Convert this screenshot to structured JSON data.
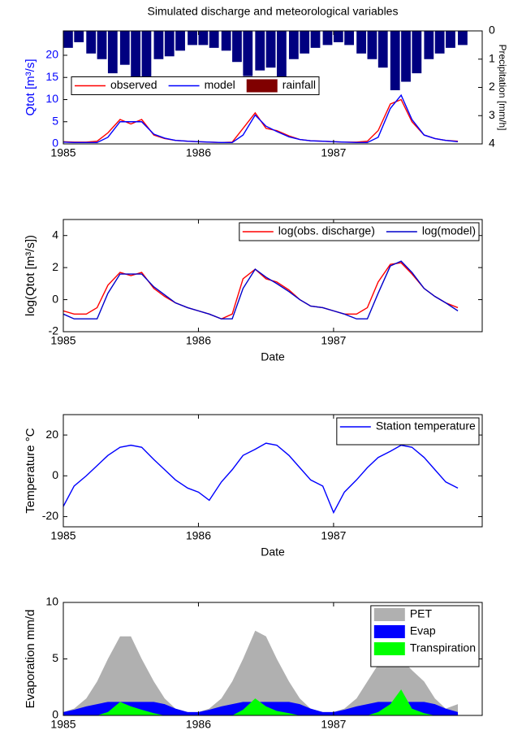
{
  "chart_data": [
    {
      "type": "line",
      "title": "Simulated discharge and meteorological variables",
      "ylabel": "Qtot [m³/s]",
      "ycolor": "#0000ff",
      "y2label": "Precipitation [mm/h]",
      "x": [
        1985,
        1985.08,
        1985.17,
        1985.25,
        1985.33,
        1985.42,
        1985.5,
        1985.58,
        1985.67,
        1985.75,
        1985.83,
        1985.92,
        1986,
        1986.08,
        1986.17,
        1986.25,
        1986.33,
        1986.42,
        1986.5,
        1986.58,
        1986.67,
        1986.75,
        1986.83,
        1986.92,
        1987,
        1987.08,
        1987.17,
        1987.25,
        1987.33,
        1987.42,
        1987.5,
        1987.58,
        1987.67,
        1987.75,
        1987.83,
        1987.92
      ],
      "xlim": [
        1985,
        1988.1
      ],
      "xticks": [
        1985,
        1986,
        1987
      ],
      "ylim": [
        0,
        25.5
      ],
      "yticks": [
        0,
        5,
        10,
        15,
        20
      ],
      "y2lim": [
        4,
        0
      ],
      "y2ticks": [
        0,
        1,
        2,
        3,
        4
      ],
      "legend": "west",
      "legend_layout": "horizontal",
      "series": [
        {
          "name": "observed",
          "color": "#ff0000",
          "values": [
            0.5,
            0.4,
            0.4,
            0.6,
            2.5,
            5.5,
            4.5,
            5.5,
            2.0,
            1.2,
            0.8,
            0.6,
            0.5,
            0.4,
            0.3,
            0.4,
            3.5,
            7.0,
            3.5,
            3.0,
            1.8,
            1.0,
            0.7,
            0.6,
            0.5,
            0.4,
            0.4,
            0.6,
            3.0,
            9.0,
            10.0,
            5.0,
            2.0,
            1.2,
            0.8,
            0.6
          ]
        },
        {
          "name": "model",
          "color": "#0000ff",
          "values": [
            0.4,
            0.3,
            0.3,
            0.3,
            1.5,
            5.0,
            5.0,
            5.0,
            2.2,
            1.3,
            0.8,
            0.6,
            0.5,
            0.4,
            0.3,
            0.3,
            2.0,
            6.5,
            4.0,
            2.8,
            1.6,
            1.0,
            0.7,
            0.6,
            0.5,
            0.4,
            0.3,
            0.3,
            1.5,
            8.0,
            11.0,
            5.5,
            2.0,
            1.2,
            0.8,
            0.5
          ]
        },
        {
          "name": "rainfall",
          "type": "bar",
          "axis": "y2",
          "color": "#000080",
          "legend_color": "#800000",
          "values": [
            0.6,
            0.4,
            0.8,
            1.0,
            1.5,
            1.2,
            2.0,
            1.8,
            1.0,
            0.9,
            0.7,
            0.5,
            0.5,
            0.6,
            0.7,
            1.1,
            1.6,
            1.4,
            1.3,
            1.9,
            1.0,
            0.8,
            0.6,
            0.5,
            0.4,
            0.5,
            0.8,
            1.0,
            1.3,
            2.1,
            1.8,
            1.5,
            1.0,
            0.8,
            0.6,
            0.5
          ]
        }
      ]
    },
    {
      "type": "line",
      "ylabel": "log(Qtot [m³/s])",
      "xlabel": "Date",
      "x": [
        1985,
        1985.08,
        1985.17,
        1985.25,
        1985.33,
        1985.42,
        1985.5,
        1985.58,
        1985.67,
        1985.75,
        1985.83,
        1985.92,
        1986,
        1986.08,
        1986.17,
        1986.25,
        1986.33,
        1986.42,
        1986.5,
        1986.58,
        1986.67,
        1986.75,
        1986.83,
        1986.92,
        1987,
        1987.08,
        1987.17,
        1987.25,
        1987.33,
        1987.42,
        1987.5,
        1987.58,
        1987.67,
        1987.75,
        1987.83,
        1987.92
      ],
      "xlim": [
        1985,
        1988.1
      ],
      "xticks": [
        1985,
        1986,
        1987
      ],
      "ylim": [
        -2,
        5
      ],
      "yticks": [
        -2,
        0,
        2,
        4
      ],
      "legend": "northeast",
      "legend_layout": "horizontal",
      "series": [
        {
          "name": "log(obs. discharge)",
          "color": "#ff0000",
          "values": [
            -0.7,
            -0.9,
            -0.9,
            -0.5,
            0.9,
            1.7,
            1.5,
            1.7,
            0.7,
            0.2,
            -0.2,
            -0.5,
            -0.7,
            -0.9,
            -1.2,
            -0.9,
            1.3,
            1.9,
            1.3,
            1.1,
            0.6,
            0,
            -0.4,
            -0.5,
            -0.7,
            -0.9,
            -0.9,
            -0.5,
            1.1,
            2.2,
            2.3,
            1.6,
            0.7,
            0.2,
            -0.2,
            -0.5
          ]
        },
        {
          "name": "log(model)",
          "color": "#0000cc",
          "values": [
            -0.9,
            -1.2,
            -1.2,
            -1.2,
            0.4,
            1.6,
            1.6,
            1.6,
            0.8,
            0.3,
            -0.2,
            -0.5,
            -0.7,
            -0.9,
            -1.2,
            -1.2,
            0.7,
            1.9,
            1.4,
            1.0,
            0.5,
            0,
            -0.4,
            -0.5,
            -0.7,
            -0.9,
            -1.2,
            -1.2,
            0.4,
            2.1,
            2.4,
            1.7,
            0.7,
            0.2,
            -0.2,
            -0.7
          ]
        }
      ]
    },
    {
      "type": "line",
      "ylabel": "Temperature °C",
      "xlabel": "Date",
      "x": [
        1985,
        1985.08,
        1985.17,
        1985.25,
        1985.33,
        1985.42,
        1985.5,
        1985.58,
        1985.67,
        1985.75,
        1985.83,
        1985.92,
        1986,
        1986.08,
        1986.17,
        1986.25,
        1986.33,
        1986.42,
        1986.5,
        1986.58,
        1986.67,
        1986.75,
        1986.83,
        1986.92,
        1987,
        1987.08,
        1987.17,
        1987.25,
        1987.33,
        1987.42,
        1987.5,
        1987.58,
        1987.67,
        1987.75,
        1987.83,
        1987.92
      ],
      "xlim": [
        1985,
        1988.1
      ],
      "xticks": [
        1985,
        1986,
        1987
      ],
      "ylim": [
        -25,
        30
      ],
      "yticks": [
        -20,
        0,
        20
      ],
      "legend": "northeast",
      "legend_layout": "vertical",
      "series": [
        {
          "name": "Station temperature",
          "color": "#0000ff",
          "values": [
            -15,
            -5,
            0,
            5,
            10,
            14,
            15,
            14,
            8,
            3,
            -2,
            -6,
            -8,
            -12,
            -3,
            3,
            10,
            13,
            16,
            15,
            10,
            4,
            -2,
            -5,
            -18,
            -8,
            -2,
            4,
            9,
            12,
            15,
            14,
            9,
            3,
            -3,
            -6
          ]
        }
      ]
    },
    {
      "type": "area",
      "ylabel": "Evaporation mm/d",
      "x": [
        1985,
        1985.08,
        1985.17,
        1985.25,
        1985.33,
        1985.42,
        1985.5,
        1985.58,
        1985.67,
        1985.75,
        1985.83,
        1985.92,
        1986,
        1986.08,
        1986.17,
        1986.25,
        1986.33,
        1986.42,
        1986.5,
        1986.58,
        1986.67,
        1986.75,
        1986.83,
        1986.92,
        1987,
        1987.08,
        1987.17,
        1987.25,
        1987.33,
        1987.42,
        1987.5,
        1987.58,
        1987.67,
        1987.75,
        1987.83,
        1987.92
      ],
      "xlim": [
        1985,
        1988.1
      ],
      "xticks": [
        1985,
        1986,
        1987
      ],
      "ylim": [
        0,
        10
      ],
      "yticks": [
        0,
        5,
        10
      ],
      "legend": "northeast",
      "legend_layout": "vertical",
      "series": [
        {
          "name": "PET",
          "color": "#b0b0b0",
          "values": [
            0.3,
            0.6,
            1.5,
            3,
            5,
            7,
            7,
            5,
            3,
            1.5,
            0.6,
            0.3,
            0.3,
            0.6,
            1.5,
            3,
            5,
            7.5,
            7,
            5,
            3,
            1.5,
            0.6,
            0.3,
            0.3,
            0.6,
            1.5,
            3,
            4.5,
            5,
            5,
            4,
            3,
            1.5,
            0.6,
            1.0
          ]
        },
        {
          "name": "Evap",
          "color": "#0000ff",
          "values": [
            0.3,
            0.5,
            0.8,
            1,
            1.2,
            1.2,
            1.2,
            1.2,
            1.2,
            1,
            0.6,
            0.3,
            0.3,
            0.5,
            0.8,
            1,
            1.2,
            1.2,
            1.2,
            1.2,
            1.2,
            1,
            0.6,
            0.3,
            0.3,
            0.5,
            0.8,
            1,
            1.2,
            1.2,
            1.2,
            1.2,
            1.2,
            1,
            0.6,
            0.3
          ]
        },
        {
          "name": "Transpiration",
          "color": "#00ff00",
          "values": [
            0,
            0,
            0,
            0,
            0.3,
            1.2,
            0.8,
            0.5,
            0.2,
            0,
            0,
            0,
            0,
            0,
            0,
            0,
            0.5,
            1.5,
            0.8,
            0.4,
            0.2,
            0,
            0,
            0,
            0,
            0,
            0,
            0,
            0.3,
            1.0,
            2.3,
            0.6,
            0.2,
            0,
            0,
            0
          ]
        }
      ]
    }
  ]
}
